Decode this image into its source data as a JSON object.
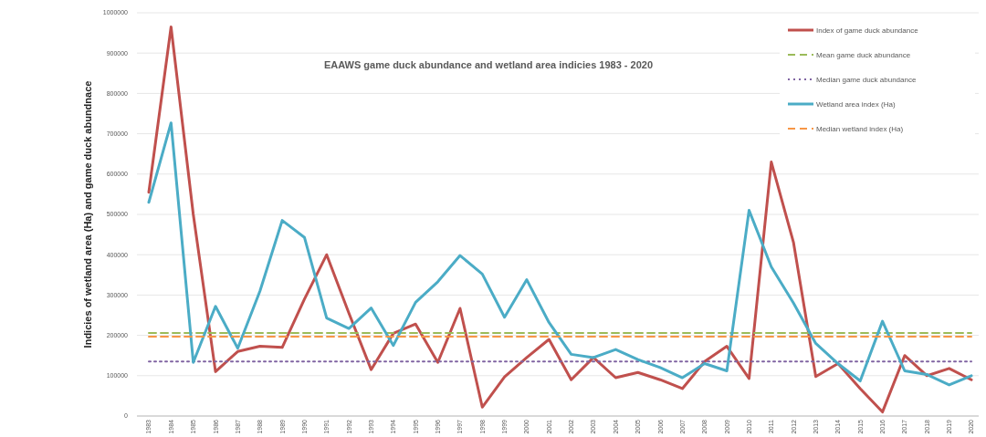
{
  "chart_data": {
    "type": "line",
    "title": "EAAWS game duck abundance and wetland area indicies 1983 - 2020",
    "ylabel": "Indicies of wetland area (Ha) and game duck abundnace",
    "categories": [
      "1983",
      "1984",
      "1985",
      "1986",
      "1987",
      "1988",
      "1989",
      "1990",
      "1991",
      "1992",
      "1993",
      "1994",
      "1995",
      "1996",
      "1997",
      "1998",
      "1999",
      "2000",
      "2001",
      "2002",
      "2003",
      "2004",
      "2005",
      "2006",
      "2007",
      "2008",
      "2009",
      "2010",
      "2011",
      "2012",
      "2013",
      "2014",
      "2015",
      "2016",
      "2017",
      "2018",
      "2019",
      "2020"
    ],
    "series": [
      {
        "name": "Index of game duck abundance",
        "color": "#c0504d",
        "line_style": "solid",
        "values": [
          555000,
          965000,
          500000,
          110000,
          160000,
          173000,
          170000,
          290000,
          400000,
          255000,
          115000,
          205000,
          228000,
          133000,
          267000,
          22000,
          97000,
          145000,
          190000,
          90000,
          145000,
          95000,
          108000,
          90000,
          68000,
          135000,
          173000,
          93000,
          630000,
          430000,
          98000,
          130000,
          68000,
          10000,
          150000,
          100000,
          118000,
          90000
        ]
      },
      {
        "name": "Mean game duck abundance",
        "color": "#9bbb59",
        "line_style": "dashed",
        "values": [
          206000,
          206000,
          206000,
          206000,
          206000,
          206000,
          206000,
          206000,
          206000,
          206000,
          206000,
          206000,
          206000,
          206000,
          206000,
          206000,
          206000,
          206000,
          206000,
          206000,
          206000,
          206000,
          206000,
          206000,
          206000,
          206000,
          206000,
          206000,
          206000,
          206000,
          206000,
          206000,
          206000,
          206000,
          206000,
          206000,
          206000,
          206000
        ]
      },
      {
        "name": "Median game duck abundance",
        "color": "#8064a2",
        "line_style": "dotted",
        "values": [
          135000,
          135000,
          135000,
          135000,
          135000,
          135000,
          135000,
          135000,
          135000,
          135000,
          135000,
          135000,
          135000,
          135000,
          135000,
          135000,
          135000,
          135000,
          135000,
          135000,
          135000,
          135000,
          135000,
          135000,
          135000,
          135000,
          135000,
          135000,
          135000,
          135000,
          135000,
          135000,
          135000,
          135000,
          135000,
          135000,
          135000,
          135000
        ]
      },
      {
        "name": "Wetland area index (Ha)",
        "color": "#4bacc6",
        "line_style": "solid",
        "values": [
          530000,
          727000,
          133000,
          272000,
          168000,
          310000,
          485000,
          443000,
          243000,
          217000,
          268000,
          175000,
          282000,
          333000,
          398000,
          352000,
          245000,
          338000,
          232000,
          153000,
          145000,
          165000,
          140000,
          120000,
          95000,
          130000,
          112000,
          510000,
          370000,
          280000,
          180000,
          130000,
          87000,
          235000,
          112000,
          103000,
          77000,
          100000
        ]
      },
      {
        "name": "Median wetland index (Ha)",
        "color": "#f79646",
        "line_style": "dashed",
        "values": [
          197000,
          197000,
          197000,
          197000,
          197000,
          197000,
          197000,
          197000,
          197000,
          197000,
          197000,
          197000,
          197000,
          197000,
          197000,
          197000,
          197000,
          197000,
          197000,
          197000,
          197000,
          197000,
          197000,
          197000,
          197000,
          197000,
          197000,
          197000,
          197000,
          197000,
          197000,
          197000,
          197000,
          197000,
          197000,
          197000,
          197000,
          197000
        ]
      }
    ],
    "ylim": [
      0,
      1000000
    ],
    "yticks": [
      0,
      100000,
      200000,
      300000,
      400000,
      500000,
      600000,
      700000,
      800000,
      900000,
      1000000
    ],
    "grid": "y",
    "legend": "top right",
    "marker": "none"
  }
}
